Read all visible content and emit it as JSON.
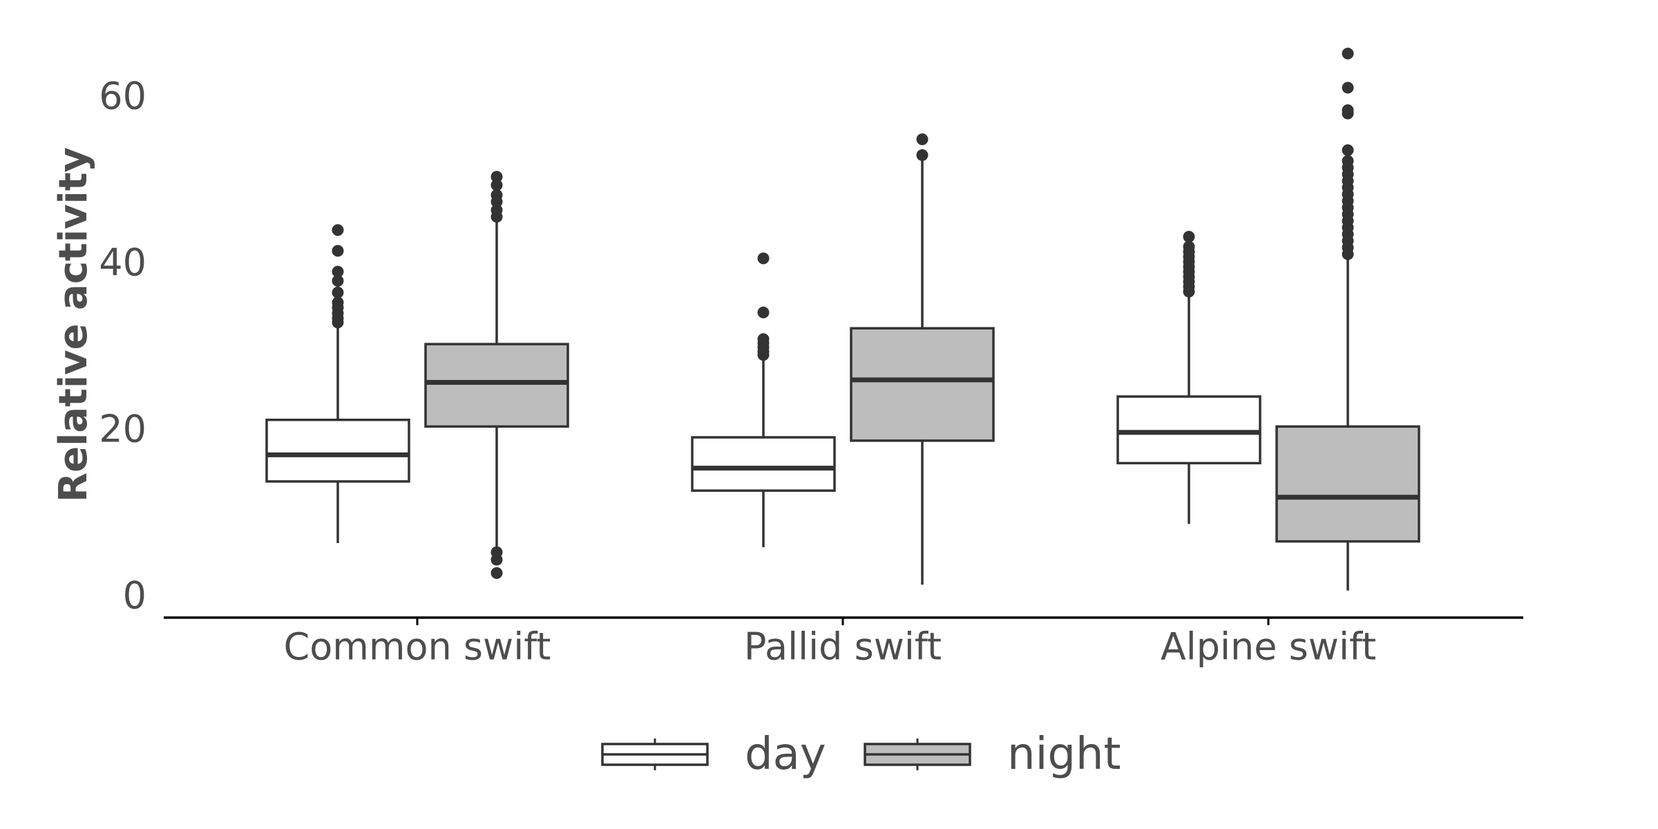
{
  "chart_data": {
    "type": "box",
    "title": "",
    "xlabel": "",
    "ylabel": "Relative activity",
    "ylim": [
      -2.5,
      68
    ],
    "y_ticks": [
      0,
      20,
      40,
      60
    ],
    "categories": [
      "Common swift",
      "Pallid swift",
      "Alpine swift"
    ],
    "grid": false,
    "legend": {
      "position": "bottom"
    },
    "colors": {
      "day": "#ffffff",
      "night": "#bdbdbd",
      "line": "#333333",
      "text": "#4d4d4d"
    },
    "series": [
      {
        "name": "day",
        "boxes": [
          {
            "whisker_low": 6.3,
            "q1": 13.7,
            "median": 16.9,
            "q3": 21.1,
            "whisker_high": 32.6,
            "outliers": [
              32.8,
              33.3,
              33.9,
              34.6,
              35.2,
              36.4,
              37.8,
              38.9,
              41.4,
              43.9
            ]
          },
          {
            "whisker_low": 5.8,
            "q1": 12.6,
            "median": 15.3,
            "q3": 19.0,
            "whisker_high": 28.5,
            "outliers": [
              28.9,
              29.3,
              29.8,
              30.3,
              30.8,
              34.0,
              40.5
            ]
          },
          {
            "whisker_low": 8.6,
            "q1": 15.9,
            "median": 19.6,
            "q3": 23.9,
            "whisker_high": 36.2,
            "outliers": [
              36.5,
              37.1,
              37.7,
              38.3,
              38.9,
              39.5,
              40.1,
              40.7,
              41.3,
              41.9,
              43.1
            ]
          }
        ]
      },
      {
        "name": "night",
        "boxes": [
          {
            "whisker_low": 5.5,
            "q1": 20.3,
            "median": 25.6,
            "q3": 30.2,
            "whisker_high": 45.0,
            "outliers": [
              2.7,
              4.3,
              5.2,
              45.5,
              46.3,
              47.3,
              48.1,
              49.3,
              50.3
            ]
          },
          {
            "whisker_low": 1.3,
            "q1": 18.6,
            "median": 25.9,
            "q3": 32.1,
            "whisker_high": 52.8,
            "outliers": [
              52.9,
              54.8
            ]
          },
          {
            "whisker_low": 0.6,
            "q1": 6.5,
            "median": 11.8,
            "q3": 20.3,
            "whisker_high": 40.5,
            "outliers": [
              41.0,
              41.8,
              42.6,
              43.4,
              44.2,
              45.0,
              45.8,
              46.6,
              47.4,
              48.2,
              49.0,
              49.8,
              50.6,
              51.4,
              52.2,
              53.5,
              57.9,
              58.3,
              61.0,
              65.1
            ]
          }
        ]
      }
    ]
  }
}
